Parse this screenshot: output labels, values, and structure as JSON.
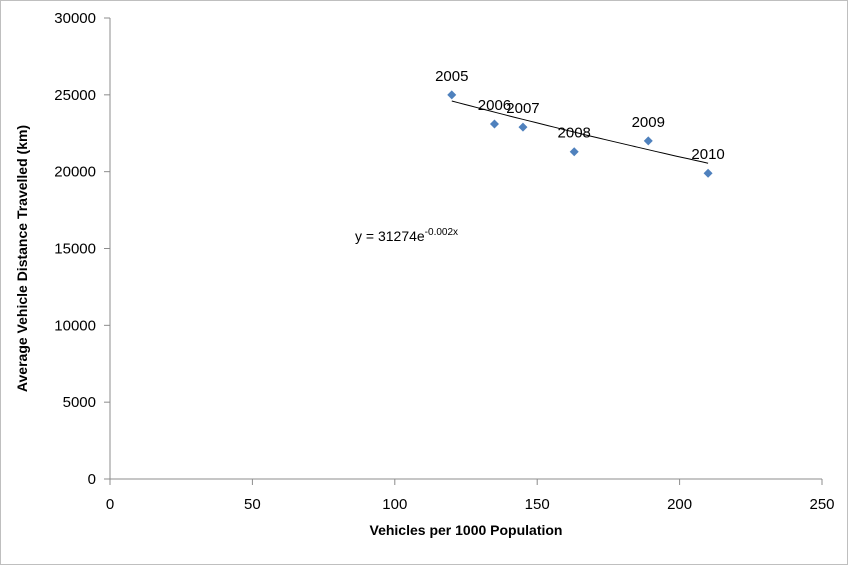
{
  "chart_data": {
    "type": "scatter",
    "title": "",
    "xlabel": "Vehicles per 1000 Population",
    "ylabel": "Average Vehicle Distance Travelled (km)",
    "xlim": [
      0,
      250
    ],
    "ylim": [
      0,
      30000
    ],
    "xticks": [
      0,
      50,
      100,
      150,
      200,
      250
    ],
    "yticks": [
      0,
      5000,
      10000,
      15000,
      20000,
      25000,
      30000
    ],
    "grid": false,
    "legend": "none",
    "series": [
      {
        "marker_color": "#4f81bd",
        "points": [
          {
            "label": "2005",
            "x": 120,
            "y": 25000
          },
          {
            "label": "2006",
            "x": 135,
            "y": 23100
          },
          {
            "label": "2007",
            "x": 145,
            "y": 22900
          },
          {
            "label": "2008",
            "x": 163,
            "y": 21300
          },
          {
            "label": "2009",
            "x": 189,
            "y": 22000
          },
          {
            "label": "2010",
            "x": 210,
            "y": 19900
          }
        ]
      }
    ],
    "trendline": {
      "kind": "exponential",
      "equation_prefix": "y = 31274e",
      "equation_exponent": "-0.002x",
      "a": 31274,
      "b": -0.002,
      "x_range": [
        120,
        210
      ],
      "color": "#000000"
    }
  }
}
